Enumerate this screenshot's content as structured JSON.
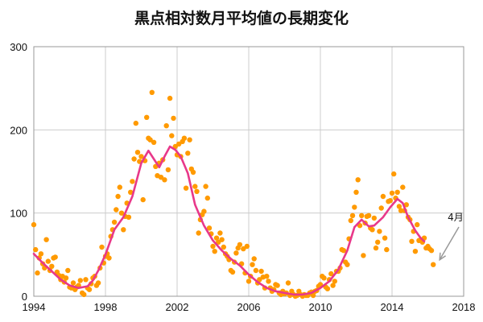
{
  "chart_data": {
    "type": "scatter",
    "title": "黒点相対数月平均値の長期変化",
    "xlabel": "",
    "ylabel": "",
    "xlim": [
      1994,
      2018
    ],
    "ylim": [
      0,
      300
    ],
    "x_ticks": [
      1994,
      1998,
      2002,
      2006,
      2010,
      2014,
      2018
    ],
    "y_ticks": [
      0,
      100,
      200,
      300
    ],
    "grid": true,
    "legend": "none",
    "colors": {
      "monthly": "#ff9a00",
      "smoothed": "#e8388a",
      "arrow": "#999999",
      "grid": "#cccccc"
    },
    "series": [
      {
        "kind": "points",
        "points": [
          [
            1994.0,
            86
          ],
          [
            1994.1,
            56
          ],
          [
            1994.2,
            28
          ],
          [
            1994.3,
            46
          ],
          [
            1994.4,
            51
          ],
          [
            1994.5,
            39
          ],
          [
            1994.6,
            34
          ],
          [
            1994.7,
            68
          ],
          [
            1994.8,
            42
          ],
          [
            1994.9,
            31
          ],
          [
            1995.0,
            36
          ],
          [
            1995.1,
            46
          ],
          [
            1995.2,
            47
          ],
          [
            1995.3,
            29
          ],
          [
            1995.4,
            25
          ],
          [
            1995.5,
            20
          ],
          [
            1995.6,
            24
          ],
          [
            1995.7,
            17
          ],
          [
            1995.8,
            22
          ],
          [
            1995.9,
            31
          ],
          [
            1996.0,
            11
          ],
          [
            1996.1,
            10
          ],
          [
            1996.2,
            16
          ],
          [
            1996.3,
            8
          ],
          [
            1996.4,
            11
          ],
          [
            1996.5,
            13
          ],
          [
            1996.6,
            19
          ],
          [
            1996.7,
            4
          ],
          [
            1996.8,
            2
          ],
          [
            1996.9,
            20
          ],
          [
            1997.0,
            10
          ],
          [
            1997.1,
            8
          ],
          [
            1997.2,
            15
          ],
          [
            1997.3,
            22
          ],
          [
            1997.4,
            24
          ],
          [
            1997.5,
            13
          ],
          [
            1997.6,
            16
          ],
          [
            1997.7,
            34
          ],
          [
            1997.8,
            59
          ],
          [
            1997.9,
            40
          ],
          [
            1998.0,
            48
          ],
          [
            1998.1,
            51
          ],
          [
            1998.2,
            46
          ],
          [
            1998.3,
            72
          ],
          [
            1998.4,
            80
          ],
          [
            1998.5,
            89
          ],
          [
            1998.6,
            104
          ],
          [
            1998.7,
            120
          ],
          [
            1998.8,
            131
          ],
          [
            1998.9,
            100
          ],
          [
            1999.0,
            80
          ],
          [
            1999.1,
            96
          ],
          [
            1999.2,
            112
          ],
          [
            1999.3,
            95
          ],
          [
            1999.4,
            125
          ],
          [
            1999.5,
            138
          ],
          [
            1999.6,
            165
          ],
          [
            1999.7,
            208
          ],
          [
            1999.8,
            173
          ],
          [
            1999.9,
            162
          ],
          [
            2000.0,
            168
          ],
          [
            2000.1,
            116
          ],
          [
            2000.2,
            163
          ],
          [
            2000.3,
            215
          ],
          [
            2000.4,
            190
          ],
          [
            2000.5,
            188
          ],
          [
            2000.6,
            245
          ],
          [
            2000.7,
            185
          ],
          [
            2000.8,
            156
          ],
          [
            2000.9,
            145
          ],
          [
            2001.0,
            160
          ],
          [
            2001.1,
            143
          ],
          [
            2001.2,
            164
          ],
          [
            2001.3,
            140
          ],
          [
            2001.4,
            205
          ],
          [
            2001.5,
            152
          ],
          [
            2001.6,
            238
          ],
          [
            2001.7,
            193
          ],
          [
            2001.8,
            214
          ],
          [
            2001.9,
            180
          ],
          [
            2002.0,
            170
          ],
          [
            2002.1,
            183
          ],
          [
            2002.2,
            168
          ],
          [
            2002.3,
            186
          ],
          [
            2002.4,
            190
          ],
          [
            2002.5,
            130
          ],
          [
            2002.6,
            172
          ],
          [
            2002.7,
            188
          ],
          [
            2002.8,
            153
          ],
          [
            2002.9,
            149
          ],
          [
            2003.0,
            132
          ],
          [
            2003.1,
            126
          ],
          [
            2003.2,
            76
          ],
          [
            2003.3,
            92
          ],
          [
            2003.4,
            98
          ],
          [
            2003.5,
            102
          ],
          [
            2003.6,
            132
          ],
          [
            2003.7,
            118
          ],
          [
            2003.8,
            82
          ],
          [
            2003.9,
            75
          ],
          [
            2004.0,
            60
          ],
          [
            2004.1,
            54
          ],
          [
            2004.2,
            70
          ],
          [
            2004.3,
            65
          ],
          [
            2004.4,
            76
          ],
          [
            2004.5,
            68
          ],
          [
            2004.6,
            59
          ],
          [
            2004.7,
            51
          ],
          [
            2004.8,
            48
          ],
          [
            2004.9,
            44
          ],
          [
            2005.0,
            31
          ],
          [
            2005.1,
            29
          ],
          [
            2005.2,
            41
          ],
          [
            2005.3,
            52
          ],
          [
            2005.4,
            58
          ],
          [
            2005.5,
            62
          ],
          [
            2005.6,
            39
          ],
          [
            2005.7,
            57
          ],
          [
            2005.8,
            28
          ],
          [
            2005.9,
            60
          ],
          [
            2006.0,
            18
          ],
          [
            2006.1,
            24
          ],
          [
            2006.2,
            38
          ],
          [
            2006.3,
            45
          ],
          [
            2006.4,
            31
          ],
          [
            2006.5,
            16
          ],
          [
            2006.6,
            20
          ],
          [
            2006.7,
            30
          ],
          [
            2006.8,
            23
          ],
          [
            2006.9,
            10
          ],
          [
            2007.0,
            24
          ],
          [
            2007.1,
            18
          ],
          [
            2007.2,
            10
          ],
          [
            2007.3,
            6
          ],
          [
            2007.4,
            8
          ],
          [
            2007.5,
            14
          ],
          [
            2007.6,
            13
          ],
          [
            2007.7,
            4
          ],
          [
            2007.8,
            2
          ],
          [
            2007.9,
            6
          ],
          [
            2008.0,
            3
          ],
          [
            2008.1,
            4
          ],
          [
            2008.2,
            16
          ],
          [
            2008.3,
            1
          ],
          [
            2008.4,
            6
          ],
          [
            2008.5,
            2
          ],
          [
            2008.6,
            0
          ],
          [
            2008.7,
            1
          ],
          [
            2008.8,
            6
          ],
          [
            2008.9,
            2
          ],
          [
            2009.0,
            0
          ],
          [
            2009.1,
            2
          ],
          [
            2009.2,
            1
          ],
          [
            2009.3,
            1
          ],
          [
            2009.4,
            4
          ],
          [
            2009.5,
            5
          ],
          [
            2009.6,
            1
          ],
          [
            2009.7,
            6
          ],
          [
            2009.8,
            7
          ],
          [
            2009.9,
            12
          ],
          [
            2010.0,
            14
          ],
          [
            2010.1,
            24
          ],
          [
            2010.2,
            22
          ],
          [
            2010.3,
            11
          ],
          [
            2010.4,
            9
          ],
          [
            2010.5,
            20
          ],
          [
            2010.6,
            27
          ],
          [
            2010.7,
            13
          ],
          [
            2010.8,
            18
          ],
          [
            2010.9,
            30
          ],
          [
            2011.0,
            30
          ],
          [
            2011.1,
            34
          ],
          [
            2011.2,
            56
          ],
          [
            2011.3,
            55
          ],
          [
            2011.4,
            41
          ],
          [
            2011.5,
            38
          ],
          [
            2011.6,
            69
          ],
          [
            2011.7,
            91
          ],
          [
            2011.8,
            97
          ],
          [
            2011.9,
            107
          ],
          [
            2012.0,
            125
          ],
          [
            2012.1,
            140
          ],
          [
            2012.2,
            85
          ],
          [
            2012.3,
            97
          ],
          [
            2012.4,
            49
          ],
          [
            2012.5,
            88
          ],
          [
            2012.6,
            96
          ],
          [
            2012.7,
            97
          ],
          [
            2012.8,
            82
          ],
          [
            2012.9,
            80
          ],
          [
            2013.0,
            94
          ],
          [
            2013.1,
            58
          ],
          [
            2013.2,
            65
          ],
          [
            2013.3,
            78
          ],
          [
            2013.4,
            106
          ],
          [
            2013.5,
            120
          ],
          [
            2013.6,
            70
          ],
          [
            2013.7,
            56
          ],
          [
            2013.8,
            114
          ],
          [
            2013.9,
            115
          ],
          [
            2014.0,
            124
          ],
          [
            2014.1,
            147
          ],
          [
            2014.2,
            118
          ],
          [
            2014.3,
            125
          ],
          [
            2014.4,
            108
          ],
          [
            2014.5,
            103
          ],
          [
            2014.6,
            131
          ],
          [
            2014.7,
            103
          ],
          [
            2014.8,
            110
          ],
          [
            2014.9,
            95
          ],
          [
            2015.0,
            92
          ],
          [
            2015.1,
            66
          ],
          [
            2015.2,
            78
          ],
          [
            2015.3,
            54
          ],
          [
            2015.4,
            86
          ],
          [
            2015.5,
            67
          ],
          [
            2015.6,
            68
          ],
          [
            2015.7,
            65
          ],
          [
            2015.8,
            70
          ],
          [
            2015.9,
            58
          ],
          [
            2016.0,
            60
          ],
          [
            2016.1,
            57
          ],
          [
            2016.2,
            55
          ],
          [
            2016.3,
            38
          ]
        ]
      },
      {
        "kind": "line",
        "points": [
          [
            1994.0,
            51
          ],
          [
            1994.5,
            40
          ],
          [
            1995.0,
            30
          ],
          [
            1995.5,
            20
          ],
          [
            1996.0,
            13
          ],
          [
            1996.5,
            10
          ],
          [
            1997.0,
            12
          ],
          [
            1997.3,
            19
          ],
          [
            1997.6,
            31
          ],
          [
            1998.0,
            50
          ],
          [
            1998.5,
            80
          ],
          [
            1999.0,
            95
          ],
          [
            1999.5,
            120
          ],
          [
            2000.0,
            160
          ],
          [
            2000.4,
            175
          ],
          [
            2000.7,
            165
          ],
          [
            2001.0,
            155
          ],
          [
            2001.3,
            168
          ],
          [
            2001.6,
            180
          ],
          [
            2001.9,
            176
          ],
          [
            2002.2,
            168
          ],
          [
            2002.6,
            148
          ],
          [
            2003.0,
            110
          ],
          [
            2003.5,
            85
          ],
          [
            2004.0,
            67
          ],
          [
            2004.5,
            55
          ],
          [
            2005.0,
            45
          ],
          [
            2005.5,
            37
          ],
          [
            2006.0,
            26
          ],
          [
            2006.5,
            17
          ],
          [
            2007.0,
            10
          ],
          [
            2007.5,
            6
          ],
          [
            2008.0,
            4
          ],
          [
            2008.5,
            2
          ],
          [
            2009.0,
            2
          ],
          [
            2009.5,
            4
          ],
          [
            2010.0,
            10
          ],
          [
            2010.5,
            18
          ],
          [
            2011.0,
            32
          ],
          [
            2011.5,
            55
          ],
          [
            2011.9,
            83
          ],
          [
            2012.3,
            92
          ],
          [
            2012.7,
            84
          ],
          [
            2013.0,
            85
          ],
          [
            2013.5,
            95
          ],
          [
            2013.9,
            107
          ],
          [
            2014.3,
            117
          ],
          [
            2014.6,
            112
          ],
          [
            2014.9,
            95
          ],
          [
            2015.3,
            79
          ],
          [
            2015.6,
            70
          ],
          [
            2015.8,
            66
          ]
        ]
      }
    ],
    "annotations": [
      {
        "label": "4月",
        "point_to": [
          2016.3,
          38
        ]
      }
    ]
  }
}
